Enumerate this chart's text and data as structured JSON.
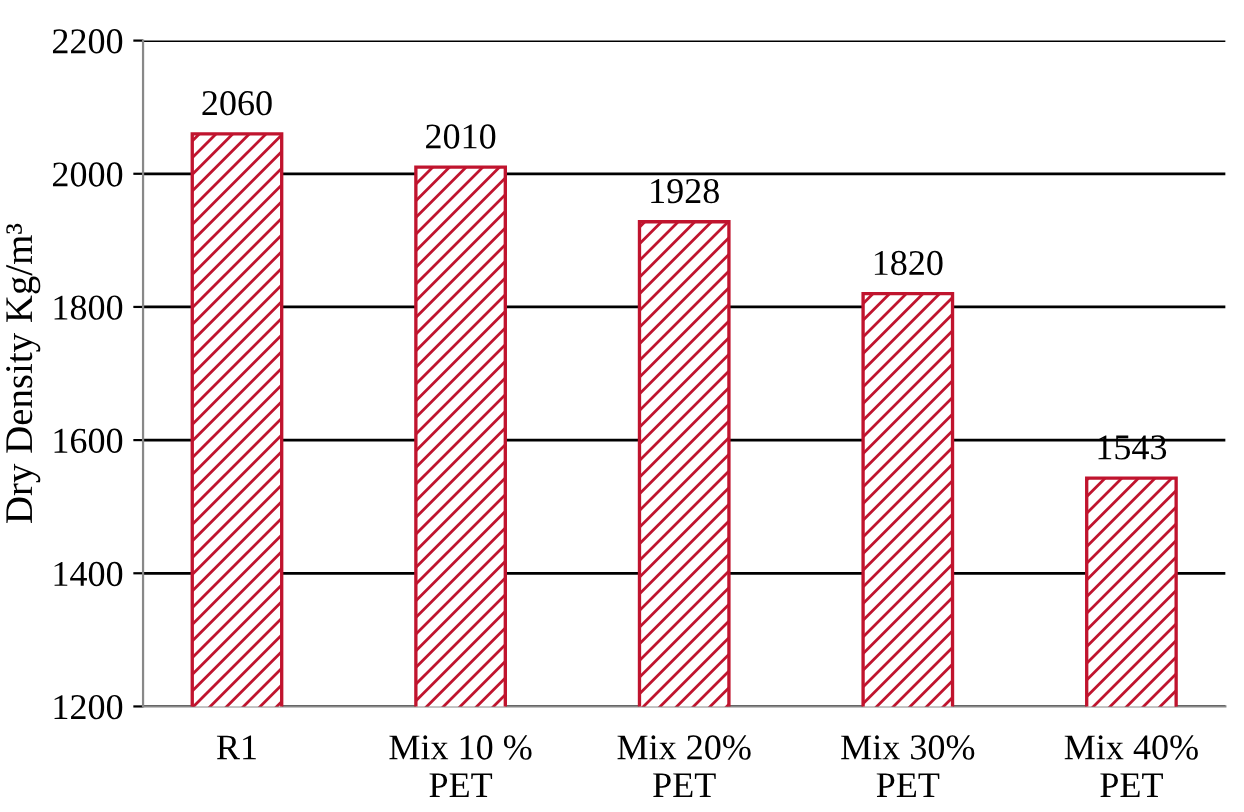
{
  "chart_data": {
    "type": "bar",
    "ylabel": "Dry Density Kg/m³",
    "categories": [
      "R1",
      "Mix 10 %\nPET",
      "Mix 20%\nPET",
      "Mix 30%\nPET",
      "Mix 40%\nPET"
    ],
    "values": [
      2060,
      2010,
      1928,
      1820,
      1543
    ],
    "color": "#c0142e",
    "ylim": [
      1200,
      2200
    ],
    "yticks": [
      1200,
      1400,
      1600,
      1800,
      2000,
      2200
    ],
    "grid": "y",
    "data_labels": true
  }
}
